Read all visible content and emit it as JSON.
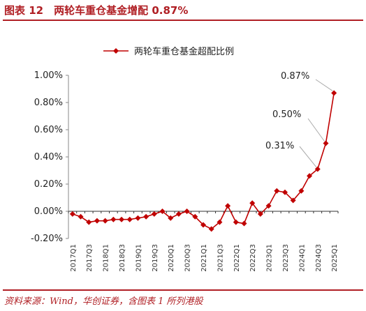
{
  "figure": {
    "title": "图表 12　两轮车重仓基金增配 0.87%",
    "source": "资料来源：Wind，华创证券，含图表 1 所列港股"
  },
  "chart_data": {
    "type": "line",
    "title": "",
    "xlabel": "",
    "ylabel": "",
    "ylim": [
      -0.2,
      1.0
    ],
    "yticks": [
      -0.2,
      0.0,
      0.2,
      0.4,
      0.6,
      0.8,
      1.0
    ],
    "ytick_labels": [
      "-0.20%",
      "0.00%",
      "0.20%",
      "0.40%",
      "0.60%",
      "0.80%",
      "1.00%"
    ],
    "categories": [
      "2017Q1",
      "2017Q2",
      "2017Q3",
      "2017Q4",
      "2018Q1",
      "2018Q2",
      "2018Q3",
      "2018Q4",
      "2019Q1",
      "2019Q2",
      "2019Q3",
      "2019Q4",
      "2020Q1",
      "2020Q2",
      "2020Q3",
      "2020Q4",
      "2021Q1",
      "2021Q2",
      "2021Q3",
      "2021Q4",
      "2022Q1",
      "2022Q2",
      "2022Q3",
      "2022Q4",
      "2023Q1",
      "2023Q2",
      "2023Q3",
      "2023Q4",
      "2024Q1",
      "2024Q2",
      "2024Q3",
      "2024Q4",
      "2025Q1"
    ],
    "xtick_labels": [
      "2017Q1",
      "2017Q3",
      "2018Q1",
      "2018Q3",
      "2019Q1",
      "2019Q3",
      "2020Q1",
      "2020Q3",
      "2021Q1",
      "2021Q3",
      "2022Q1",
      "2022Q3",
      "2023Q1",
      "2023Q3",
      "2024Q1",
      "2024Q3",
      "2025Q1"
    ],
    "series": [
      {
        "name": "两轮车重仓基金超配比例",
        "color": "#c00000",
        "marker": "diamond",
        "values": [
          -0.02,
          -0.04,
          -0.08,
          -0.07,
          -0.07,
          -0.06,
          -0.06,
          -0.06,
          -0.05,
          -0.04,
          -0.02,
          0.0,
          -0.05,
          -0.02,
          0.0,
          -0.04,
          -0.1,
          -0.13,
          -0.08,
          0.04,
          -0.08,
          -0.09,
          0.06,
          -0.02,
          0.04,
          0.15,
          0.14,
          0.08,
          0.15,
          0.26,
          0.31,
          0.5,
          0.87
        ]
      }
    ],
    "annotations": [
      {
        "text": "0.87%",
        "index": 32
      },
      {
        "text": "0.50%",
        "index": 31
      },
      {
        "text": "0.31%",
        "index": 30
      }
    ],
    "legend": "top-center",
    "grid": false
  }
}
